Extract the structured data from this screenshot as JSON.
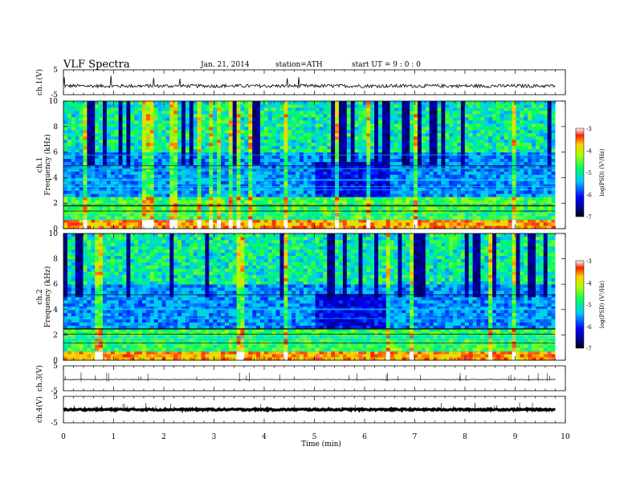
{
  "header": {
    "title": "VLF Spectra",
    "date": "Jan. 21, 2014",
    "station": "station=ATH",
    "start": "start UT = 9 : 0 : 0"
  },
  "chart_data": [
    {
      "type": "line",
      "name": "ch1-waveform",
      "ylabel": "ch.1(V)",
      "ylim": [
        -5,
        5
      ],
      "yticks": [
        "5",
        "-5"
      ],
      "description_values": "broadband noise waveform around -1.5 V with sporadic spikes",
      "baseline": -1.5
    },
    {
      "type": "heatmap",
      "name": "ch1-spectrogram",
      "ylabel_top": "ch.1",
      "ylabel": "Frequency (kHz)",
      "ylim": [
        0,
        10
      ],
      "yticks": [
        "0",
        "2",
        "4",
        "6",
        "8",
        "10"
      ],
      "colorbar": {
        "label": "log(PSD) (V²/Hz)",
        "range": [
          -7,
          -3
        ],
        "ticks": [
          "-3",
          "-4",
          "-5",
          "-6",
          "-7"
        ]
      }
    },
    {
      "type": "heatmap",
      "name": "ch2-spectrogram",
      "ylabel_top": "ch.2",
      "ylabel": "Frequency (kHz)",
      "ylim": [
        0,
        10
      ],
      "yticks": [
        "0",
        "2",
        "4",
        "6",
        "8",
        "10"
      ],
      "colorbar": {
        "label": "log(PSD) (V²/Hz)",
        "range": [
          -7,
          -3
        ],
        "ticks": [
          "-3",
          "-4",
          "-5",
          "-6",
          "-7"
        ]
      }
    },
    {
      "type": "line",
      "name": "ch3-waveform",
      "ylabel": "ch.3(V)",
      "ylim": [
        -5,
        5
      ],
      "yticks": [
        "5",
        "-5"
      ],
      "baseline": -0.5
    },
    {
      "type": "line",
      "name": "ch4-waveform",
      "ylabel": "ch.4(V)",
      "ylim": [
        -5,
        5
      ],
      "yticks": [
        "5",
        "-5"
      ],
      "baseline": 0
    }
  ],
  "xaxis": {
    "label": "Time (min)",
    "xlim": [
      0,
      10
    ],
    "ticks": [
      "0",
      "1",
      "2",
      "3",
      "4",
      "5",
      "6",
      "7",
      "8",
      "9",
      "10"
    ],
    "data_end": 9.8
  }
}
